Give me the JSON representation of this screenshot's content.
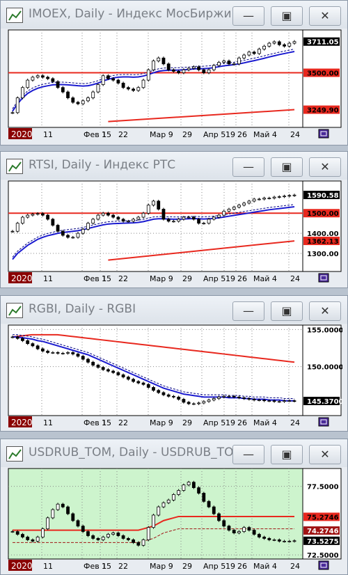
{
  "windows": [
    {
      "title": "IMOEX, Daily - Индекс МосБиржи",
      "bg": "#ffffff",
      "ymin": 3130,
      "ymax": 3790,
      "close": [
        3230,
        3330,
        3400,
        3450,
        3470,
        3480,
        3470,
        3460,
        3440,
        3400,
        3370,
        3330,
        3300,
        3290,
        3310,
        3330,
        3370,
        3420,
        3480,
        3460,
        3450,
        3430,
        3400,
        3390,
        3380,
        3400,
        3450,
        3520,
        3580,
        3600,
        3560,
        3520,
        3510,
        3500,
        3520,
        3530,
        3540,
        3520,
        3500,
        3520,
        3550,
        3570,
        3580,
        3560,
        3560,
        3600,
        3620,
        3640,
        3630,
        3660,
        3680,
        3700,
        3710,
        3690,
        3680,
        3700,
        3711
      ],
      "ma_blue": [
        3240,
        3290,
        3330,
        3360,
        3380,
        3395,
        3405,
        3412,
        3418,
        3420,
        3420,
        3418,
        3415,
        3412,
        3410,
        3412,
        3420,
        3430,
        3445,
        3455,
        3465,
        3470,
        3472,
        3472,
        3470,
        3472,
        3478,
        3488,
        3500,
        3510,
        3515,
        3517,
        3518,
        3518,
        3520,
        3522,
        3526,
        3528,
        3528,
        3530,
        3535,
        3541,
        3547,
        3551,
        3555,
        3560,
        3567,
        3575,
        3582,
        3590,
        3598,
        3607,
        3615,
        3623,
        3630,
        3637,
        3644
      ],
      "hline": 3500,
      "trend": [
        3130,
        3250
      ],
      "tags": [
        {
          "text": "3711.05",
          "value": 3711.05,
          "bg": "#000000",
          "fg": "#ffffff"
        },
        {
          "text": "3500.00",
          "value": 3500,
          "bg": "#e8281e",
          "fg": "#000000"
        },
        {
          "text": "3249.90",
          "value": 3249.9,
          "bg": "#e8281e",
          "fg": "#000000"
        }
      ],
      "ticks": []
    },
    {
      "title": "RTSI, Daily - Индекс РТС",
      "bg": "#ffffff",
      "ymin": 1210,
      "ymax": 1660,
      "close": [
        1410,
        1450,
        1480,
        1490,
        1495,
        1498,
        1490,
        1470,
        1440,
        1410,
        1390,
        1380,
        1380,
        1400,
        1420,
        1450,
        1470,
        1490,
        1500,
        1490,
        1480,
        1470,
        1460,
        1460,
        1470,
        1480,
        1500,
        1540,
        1560,
        1520,
        1470,
        1460,
        1460,
        1470,
        1480,
        1480,
        1470,
        1450,
        1450,
        1470,
        1480,
        1490,
        1510,
        1520,
        1530,
        1540,
        1550,
        1560,
        1570,
        1570,
        1575,
        1575,
        1580,
        1582,
        1585,
        1588,
        1590
      ],
      "ma_blue": [
        1270,
        1300,
        1320,
        1340,
        1355,
        1370,
        1380,
        1388,
        1394,
        1400,
        1404,
        1407,
        1410,
        1413,
        1418,
        1424,
        1430,
        1436,
        1442,
        1446,
        1448,
        1449,
        1450,
        1451,
        1452,
        1454,
        1458,
        1464,
        1470,
        1472,
        1472,
        1471,
        1470,
        1470,
        1471,
        1472,
        1473,
        1472,
        1471,
        1472,
        1474,
        1477,
        1481,
        1485,
        1489,
        1493,
        1497,
        1501,
        1505,
        1509,
        1513,
        1517,
        1520,
        1523,
        1526,
        1529,
        1532
      ],
      "hline": 1500,
      "trend": [
        1220,
        1362
      ],
      "tags": [
        {
          "text": "1590.58",
          "value": 1590.58,
          "bg": "#000000",
          "fg": "#ffffff"
        },
        {
          "text": "1500.00",
          "value": 1500,
          "bg": "#e8281e",
          "fg": "#000000"
        },
        {
          "text": "1400.00",
          "value": 1400,
          "bg": "none",
          "fg": "#000000"
        },
        {
          "text": "1362.13",
          "value": 1362.13,
          "bg": "#e8281e",
          "fg": "#000000"
        },
        {
          "text": "1300.00",
          "value": 1300,
          "bg": "none",
          "fg": "#000000"
        }
      ],
      "ticks": []
    },
    {
      "title": "RGBI, Daily - RGBI",
      "bg": "#ffffff",
      "ymin": 143.4,
      "ymax": 155.6,
      "close": [
        154.0,
        153.8,
        153.5,
        153.1,
        152.8,
        152.4,
        152.1,
        151.9,
        151.9,
        151.8,
        151.8,
        151.9,
        151.7,
        151.4,
        151.0,
        150.6,
        150.2,
        149.9,
        149.6,
        149.4,
        149.2,
        148.9,
        148.6,
        148.3,
        148.0,
        147.8,
        147.6,
        147.2,
        146.8,
        146.5,
        146.2,
        146.0,
        145.9,
        145.6,
        145.2,
        145.0,
        145.0,
        145.1,
        145.3,
        145.5,
        145.7,
        145.9,
        146.0,
        146.0,
        145.9,
        145.8,
        145.7,
        145.6,
        145.5,
        145.5,
        145.4,
        145.4,
        145.3,
        145.3,
        145.4,
        145.4,
        145.37
      ],
      "ma_blue": [
        154.0,
        154.0,
        153.9,
        153.8,
        153.7,
        153.5,
        153.4,
        153.2,
        153.0,
        152.8,
        152.6,
        152.4,
        152.2,
        152.0,
        151.8,
        151.6,
        151.3,
        151.0,
        150.7,
        150.4,
        150.1,
        149.8,
        149.5,
        149.2,
        148.9,
        148.6,
        148.3,
        148.0,
        147.7,
        147.4,
        147.1,
        146.9,
        146.7,
        146.5,
        146.3,
        146.2,
        146.1,
        146.0,
        145.9,
        145.9,
        145.9,
        145.9,
        145.9,
        145.8,
        145.8,
        145.8,
        145.7,
        145.7,
        145.6,
        145.6,
        145.6,
        145.5,
        145.5,
        145.5,
        145.4,
        145.4,
        145.4
      ],
      "ma_red": [
        154.0,
        154.1,
        154.2,
        154.3,
        154.3,
        154.3,
        154.3,
        154.3,
        154.2,
        154.1,
        154.0,
        153.9,
        153.8,
        153.7,
        153.6,
        153.5,
        153.4,
        153.3,
        153.2,
        153.1,
        153.0,
        152.9,
        152.8,
        152.7,
        152.6,
        152.5,
        152.4,
        152.3,
        152.2,
        152.1,
        152.0,
        151.9,
        151.8,
        151.7,
        151.6,
        151.5,
        151.4,
        151.3,
        151.2,
        151.1,
        151.0,
        150.9,
        150.8,
        150.7,
        150.6
      ],
      "hline": null,
      "trend": null,
      "tags": [
        {
          "text": "155.0000",
          "value": 155.0,
          "bg": "none",
          "fg": "#000000"
        },
        {
          "text": "150.0000",
          "value": 150.0,
          "bg": "none",
          "fg": "#000000"
        },
        {
          "text": "145.3700",
          "value": 145.37,
          "bg": "#000000",
          "fg": "#ffffff"
        }
      ],
      "ticks": []
    },
    {
      "title": "USDRUB_TOM, Daily - USDRUB_TOM",
      "bg": "#cdf4cd",
      "ymin": 72.2,
      "ymax": 78.8,
      "close": [
        74.2,
        74.0,
        73.8,
        73.6,
        73.5,
        73.8,
        74.4,
        75.2,
        75.8,
        76.2,
        76.0,
        75.5,
        75.0,
        74.6,
        74.2,
        73.9,
        73.7,
        73.6,
        73.8,
        74.0,
        74.1,
        73.9,
        73.7,
        73.6,
        73.4,
        73.2,
        73.6,
        74.5,
        75.4,
        76.0,
        76.3,
        76.5,
        76.9,
        77.2,
        77.6,
        77.8,
        77.4,
        77.0,
        76.4,
        76.0,
        75.5,
        75.0,
        74.6,
        74.3,
        74.1,
        74.2,
        74.5,
        74.3,
        74.0,
        73.8,
        73.7,
        73.6,
        73.6,
        73.5,
        73.5,
        73.5,
        73.53
      ],
      "ma_red": [
        74.3,
        74.3,
        74.3,
        74.3,
        74.3,
        74.3,
        74.3,
        74.3,
        74.3,
        74.3,
        74.3,
        74.3,
        74.3,
        74.3,
        74.3,
        74.3,
        74.3,
        74.3,
        74.3,
        74.3,
        74.3,
        74.3,
        74.3,
        74.3,
        74.3,
        74.3,
        74.4,
        74.5,
        74.6,
        74.8,
        75.0,
        75.1,
        75.2,
        75.3,
        75.3,
        75.3,
        75.3,
        75.3,
        75.3,
        75.3,
        75.3,
        75.3,
        75.3,
        75.3,
        75.3,
        75.3,
        75.3,
        75.3,
        75.3,
        75.3,
        75.3,
        75.3,
        75.3,
        75.3,
        75.3,
        75.3,
        75.3
      ],
      "hline": null,
      "trend": null,
      "tags": [
        {
          "text": "77.5000",
          "value": 77.5,
          "bg": "none",
          "fg": "#000000"
        },
        {
          "text": "75.2746",
          "value": 75.2746,
          "bg": "#e8281e",
          "fg": "#000000"
        },
        {
          "text": "74.2746",
          "value": 74.2746,
          "bg": "#a01414",
          "fg": "#ffffff"
        },
        {
          "text": "73.5275",
          "value": 73.5275,
          "bg": "#000000",
          "fg": "#ffffff"
        },
        {
          "text": "72.5000",
          "value": 72.5,
          "bg": "none",
          "fg": "#000000"
        }
      ],
      "ticks": []
    }
  ],
  "xaxis": {
    "year_label": "2020",
    "labels": [
      "11",
      "Фев 1",
      "15",
      "22",
      "Мар 9",
      "29",
      "Апр 5",
      "19",
      "26",
      "Май 4",
      "24"
    ]
  },
  "window_buttons": {
    "minimize": "—",
    "maximize": "▣",
    "close": "✕"
  },
  "colors": {
    "red": "#e8281e",
    "blue": "#1a1ad0",
    "grid": "#666666",
    "year_tag_bg": "#8a0000"
  }
}
